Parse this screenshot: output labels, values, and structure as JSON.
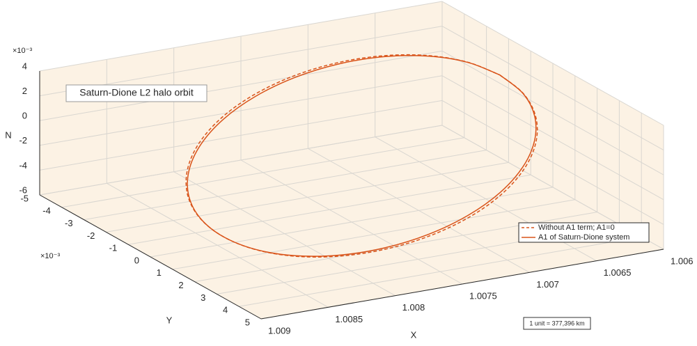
{
  "chart_data": {
    "type": "line3d",
    "xlabel": "X",
    "ylabel": "Y",
    "zlabel": "N",
    "xlim": [
      1.006,
      1.009
    ],
    "xdir": "reverse",
    "xticks": [
      1.006,
      1.0065,
      1.007,
      1.0075,
      1.008,
      1.0085,
      1.009
    ],
    "ylim": [
      -5,
      5
    ],
    "yticks": [
      -5,
      -4,
      -3,
      -2,
      -1,
      0,
      1,
      2,
      3,
      4,
      5
    ],
    "y_exponent": "×10⁻³",
    "zlim": [
      -6,
      4
    ],
    "zticks": [
      -6,
      -4,
      -2,
      0,
      2,
      4
    ],
    "z_exponent": "×10⁻³",
    "grid": true,
    "background": "#fcf2e4",
    "legend_location": "east",
    "annotations": [
      "Saturn-Dione L2 halo orbit",
      "1 unit = 377,396 km"
    ],
    "series": [
      {
        "name": "Without A1 term; A1=0",
        "color": "#d95319",
        "dash": true,
        "x": [
          1.006395,
          1.00643,
          1.006533,
          1.006697,
          1.00691,
          1.007158,
          1.007425,
          1.007692,
          1.00794,
          1.008153,
          1.008317,
          1.00842,
          1.008455,
          1.00842,
          1.008317,
          1.008153,
          1.00794,
          1.007692,
          1.007425,
          1.007158,
          1.00691,
          1.006697,
          1.006533,
          1.00643,
          1.006395
        ],
        "y": [
          0,
          1.269,
          2.45,
          3.464,
          4.243,
          4.733,
          4.9,
          4.733,
          4.243,
          3.464,
          2.45,
          1.269,
          0,
          -1.269,
          -2.45,
          -3.464,
          -4.243,
          -4.733,
          -4.9,
          -4.733,
          -4.243,
          -3.464,
          -2.45,
          -1.269,
          0
        ],
        "z": [
          3.8,
          3.644,
          3.184,
          2.452,
          1.5,
          0.391,
          -0.8,
          -1.991,
          -3.1,
          -4.052,
          -4.784,
          -5.244,
          -5.4,
          -5.244,
          -4.784,
          -4.052,
          -3.1,
          -1.991,
          -0.8,
          0.391,
          1.5,
          2.452,
          3.184,
          3.644,
          3.8
        ]
      },
      {
        "name": "A1 of Saturn-Dione system",
        "color": "#d95319",
        "dash": false,
        "x": [
          1.006395,
          1.00643,
          1.006533,
          1.006697,
          1.00691,
          1.007158,
          1.007425,
          1.007692,
          1.00794,
          1.008153,
          1.008317,
          1.00842,
          1.008455,
          1.00842,
          1.008317,
          1.008153,
          1.00794,
          1.007692,
          1.007425,
          1.007158,
          1.00691,
          1.006697,
          1.006533,
          1.00643,
          1.006395
        ],
        "y": [
          0,
          1.243,
          2.4,
          3.394,
          4.157,
          4.637,
          4.8,
          4.637,
          4.157,
          3.394,
          2.4,
          1.243,
          0,
          -1.243,
          -2.4,
          -3.394,
          -4.157,
          -4.637,
          -4.8,
          -4.637,
          -4.157,
          -3.394,
          -2.4,
          -1.243,
          0
        ],
        "z": [
          3.8,
          3.644,
          3.184,
          2.452,
          1.5,
          0.391,
          -0.8,
          -1.991,
          -3.1,
          -4.052,
          -4.784,
          -5.244,
          -5.4,
          -5.244,
          -4.784,
          -4.052,
          -3.1,
          -1.991,
          -0.8,
          0.391,
          1.5,
          2.452,
          3.184,
          3.644,
          3.8
        ]
      }
    ]
  }
}
